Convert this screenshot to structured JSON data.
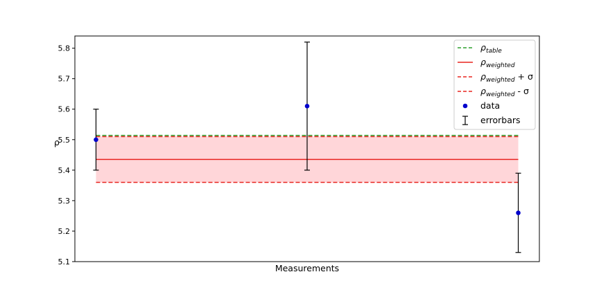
{
  "chart_data": {
    "type": "scatter",
    "xlabel": "Measurements",
    "ylabel": "ρ",
    "ylim": [
      5.1,
      5.84
    ],
    "xlim": [
      -0.1,
      2.1
    ],
    "x_ticks_visible": false,
    "y_ticks": [
      "5.1",
      "5.2",
      "5.3",
      "5.4",
      "5.5",
      "5.6",
      "5.7",
      "5.8"
    ],
    "y_tick_values": [
      5.1,
      5.2,
      5.3,
      5.4,
      5.5,
      5.6,
      5.7,
      5.8
    ],
    "grid": false,
    "legend_position": "top-right",
    "data": {
      "x": [
        0,
        1,
        2
      ],
      "y": [
        5.5,
        5.61,
        5.26
      ],
      "yerr": [
        0.1,
        0.21,
        0.13
      ],
      "color": "#0000cc"
    },
    "rho_table": 5.514,
    "rho_weighted": 5.435,
    "sigma": 0.075,
    "band_x_range": [
      0,
      2
    ],
    "band_color": "#ffd6d9",
    "colors": {
      "table": "#2ca02c",
      "weighted": "#e8231f",
      "errorbar": "#000000"
    },
    "legend": [
      {
        "kind": "dashed-green",
        "symbol": "ρ",
        "sub": "table",
        "suffix": ""
      },
      {
        "kind": "solid-red",
        "symbol": "ρ",
        "sub": "weighted",
        "suffix": ""
      },
      {
        "kind": "dashed-red",
        "symbol": "ρ",
        "sub": "weighted",
        "suffix": " + σ"
      },
      {
        "kind": "dashed-red",
        "symbol": "ρ",
        "sub": "weighted",
        "suffix": " - σ"
      },
      {
        "kind": "dot",
        "symbol": "data",
        "sub": "",
        "suffix": ""
      },
      {
        "kind": "errorbar",
        "symbol": "errorbars",
        "sub": "",
        "suffix": ""
      }
    ]
  }
}
